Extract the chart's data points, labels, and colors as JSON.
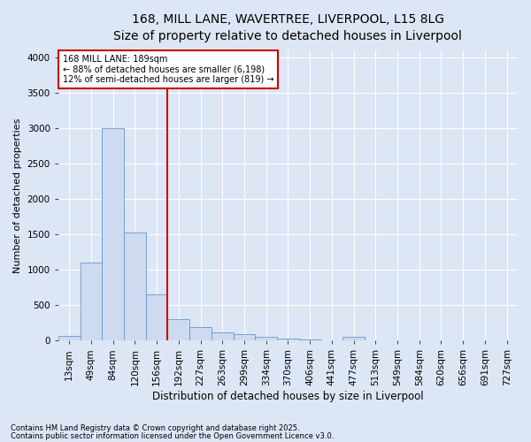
{
  "title_line1": "168, MILL LANE, WAVERTREE, LIVERPOOL, L15 8LG",
  "title_line2": "Size of property relative to detached houses in Liverpool",
  "xlabel": "Distribution of detached houses by size in Liverpool",
  "ylabel": "Number of detached properties",
  "footer_line1": "Contains HM Land Registry data © Crown copyright and database right 2025.",
  "footer_line2": "Contains public sector information licensed under the Open Government Licence v3.0.",
  "categories": [
    "13sqm",
    "49sqm",
    "84sqm",
    "120sqm",
    "156sqm",
    "192sqm",
    "227sqm",
    "263sqm",
    "299sqm",
    "334sqm",
    "370sqm",
    "406sqm",
    "441sqm",
    "477sqm",
    "513sqm",
    "549sqm",
    "584sqm",
    "620sqm",
    "656sqm",
    "691sqm",
    "727sqm"
  ],
  "values": [
    60,
    1100,
    3000,
    1530,
    650,
    300,
    185,
    110,
    90,
    55,
    30,
    10,
    5,
    50,
    5,
    2,
    2,
    2,
    2,
    2,
    2
  ],
  "bar_color": "#cddaf0",
  "bar_edge_color": "#6699cc",
  "vline_x_index": 5,
  "vline_color": "#cc0000",
  "annotation_text": "168 MILL LANE: 189sqm\n← 88% of detached houses are smaller (6,198)\n12% of semi-detached houses are larger (819) →",
  "annotation_box_color": "#ffffff",
  "annotation_box_edge": "#cc0000",
  "ylim": [
    0,
    4100
  ],
  "yticks": [
    0,
    500,
    1000,
    1500,
    2000,
    2500,
    3000,
    3500,
    4000
  ],
  "background_color": "#dce6f5",
  "plot_background": "#dce6f5",
  "grid_color": "#ffffff",
  "title_fontsize": 10,
  "subtitle_fontsize": 9,
  "xlabel_fontsize": 8.5,
  "ylabel_fontsize": 8,
  "tick_fontsize": 7.5,
  "footer_fontsize": 6
}
